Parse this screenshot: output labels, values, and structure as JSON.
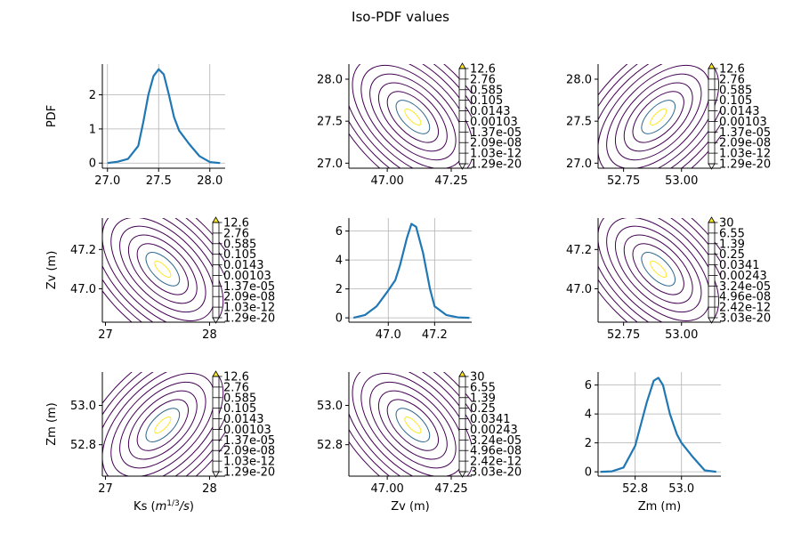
{
  "figure": {
    "title": "Iso-PDF values"
  },
  "contour_palette": [
    "#440154",
    "#31688e",
    "#5ec962",
    "#fde725"
  ],
  "line_color": "#1f77b4",
  "colorbars": {
    "a": [
      "12.6",
      "2.76",
      "0.585",
      "0.105",
      "0.0143",
      "0.00103",
      "1.37e-05",
      "2.09e-08",
      "1.03e-12",
      "1.29e-20"
    ],
    "b": [
      "30",
      "6.55",
      "1.39",
      "0.25",
      "0.0341",
      "0.00243",
      "3.24e-05",
      "4.96e-08",
      "2.42e-12",
      "3.03e-20"
    ]
  },
  "chart_data": [
    {
      "type": "line",
      "id": "p00",
      "ylabel": "PDF",
      "xlabel": "",
      "grid": true,
      "xlim": [
        26.95,
        28.15
      ],
      "ylim": [
        -0.15,
        2.9
      ],
      "xticks": [
        {
          "v": 27,
          "t": "27.0"
        },
        {
          "v": 27.5,
          "t": "27.5"
        },
        {
          "v": 28,
          "t": "28.0"
        }
      ],
      "yticks": [
        {
          "v": 0,
          "t": "0"
        },
        {
          "v": 1,
          "t": "1"
        },
        {
          "v": 2,
          "t": "2"
        }
      ],
      "x": [
        27.0,
        27.1,
        27.2,
        27.3,
        27.35,
        27.4,
        27.45,
        27.5,
        27.55,
        27.6,
        27.65,
        27.7,
        27.8,
        27.9,
        28.0,
        28.1
      ],
      "y": [
        0.0,
        0.04,
        0.12,
        0.5,
        1.2,
        2.0,
        2.55,
        2.75,
        2.6,
        2.0,
        1.35,
        0.95,
        0.55,
        0.2,
        0.03,
        0.0
      ]
    },
    {
      "type": "contour",
      "id": "p01",
      "xlabel": "",
      "ylabel": "",
      "colorbar": "a",
      "xlim": [
        46.85,
        47.33
      ],
      "ylim": [
        26.94,
        28.18
      ],
      "center": [
        47.1,
        27.55
      ],
      "orient": "neg",
      "xticks": [
        {
          "v": 47,
          "t": "47.00"
        },
        {
          "v": 47.25,
          "t": "47.25"
        }
      ],
      "yticks": [
        {
          "v": 27,
          "t": "27.0"
        },
        {
          "v": 27.5,
          "t": "27.5"
        },
        {
          "v": 28,
          "t": "28.0"
        }
      ]
    },
    {
      "type": "contour",
      "id": "p02",
      "xlabel": "",
      "ylabel": "",
      "colorbar": "a",
      "xlim": [
        52.64,
        53.17
      ],
      "ylim": [
        26.94,
        28.18
      ],
      "center": [
        52.9,
        27.55
      ],
      "orient": "pos",
      "xticks": [
        {
          "v": 52.75,
          "t": "52.75"
        },
        {
          "v": 53,
          "t": "53.00"
        }
      ],
      "yticks": [
        {
          "v": 27,
          "t": "27.0"
        },
        {
          "v": 27.5,
          "t": "27.5"
        },
        {
          "v": 28,
          "t": "28.0"
        }
      ]
    },
    {
      "type": "contour",
      "id": "p10",
      "xlabel": "",
      "ylabel": "Zv (m)",
      "colorbar": "a",
      "xlim": [
        26.97,
        28.15
      ],
      "ylim": [
        46.83,
        47.36
      ],
      "center": [
        27.55,
        47.1
      ],
      "orient": "neg",
      "xticks": [
        {
          "v": 27,
          "t": "27"
        },
        {
          "v": 28,
          "t": "28"
        }
      ],
      "yticks": [
        {
          "v": 47,
          "t": "47.0"
        },
        {
          "v": 47.2,
          "t": "47.2"
        }
      ]
    },
    {
      "type": "line",
      "id": "p11",
      "xlabel": "",
      "ylabel": "",
      "grid": true,
      "xlim": [
        46.83,
        47.36
      ],
      "ylim": [
        -0.3,
        6.9
      ],
      "xticks": [
        {
          "v": 47,
          "t": "47.0"
        },
        {
          "v": 47.2,
          "t": "47.2"
        }
      ],
      "yticks": [
        {
          "v": 0,
          "t": "0"
        },
        {
          "v": 2,
          "t": "2"
        },
        {
          "v": 4,
          "t": "4"
        },
        {
          "v": 6,
          "t": "6"
        }
      ],
      "x": [
        46.85,
        46.9,
        46.95,
        47.0,
        47.03,
        47.05,
        47.08,
        47.1,
        47.12,
        47.15,
        47.18,
        47.2,
        47.25,
        47.3,
        47.35
      ],
      "y": [
        0.0,
        0.2,
        0.8,
        1.9,
        2.6,
        3.6,
        5.5,
        6.5,
        6.3,
        4.5,
        2.0,
        0.8,
        0.2,
        0.03,
        0.0
      ]
    },
    {
      "type": "contour",
      "id": "p12",
      "xlabel": "",
      "ylabel": "",
      "colorbar": "b",
      "xlim": [
        52.64,
        53.17
      ],
      "ylim": [
        46.83,
        47.36
      ],
      "center": [
        52.9,
        47.1
      ],
      "orient": "neg",
      "xticks": [
        {
          "v": 52.75,
          "t": "52.75"
        },
        {
          "v": 53,
          "t": "53.00"
        }
      ],
      "yticks": [
        {
          "v": 47,
          "t": "47.0"
        },
        {
          "v": 47.2,
          "t": "47.2"
        }
      ]
    },
    {
      "type": "contour",
      "id": "p20",
      "xlabel": "Ks (m^{1/3}/s)",
      "ylabel": "Zm (m)",
      "colorbar": "a",
      "xlim": [
        26.97,
        28.15
      ],
      "ylim": [
        52.64,
        53.17
      ],
      "center": [
        27.55,
        52.9
      ],
      "orient": "pos",
      "xticks": [
        {
          "v": 27,
          "t": "27"
        },
        {
          "v": 28,
          "t": "28"
        }
      ],
      "yticks": [
        {
          "v": 52.8,
          "t": "52.8"
        },
        {
          "v": 53,
          "t": "53.0"
        }
      ]
    },
    {
      "type": "contour",
      "id": "p21",
      "xlabel": "Zv (m)",
      "ylabel": "",
      "colorbar": "b",
      "xlim": [
        46.85,
        47.33
      ],
      "ylim": [
        52.64,
        53.17
      ],
      "center": [
        47.1,
        52.9
      ],
      "orient": "neg",
      "xticks": [
        {
          "v": 47,
          "t": "47.00"
        },
        {
          "v": 47.25,
          "t": "47.25"
        }
      ],
      "yticks": [
        {
          "v": 52.8,
          "t": "52.8"
        },
        {
          "v": 53,
          "t": "53.0"
        }
      ]
    },
    {
      "type": "line",
      "id": "p22",
      "xlabel": "Zm (m)",
      "ylabel": "",
      "grid": true,
      "xlim": [
        52.64,
        53.17
      ],
      "ylim": [
        -0.3,
        6.9
      ],
      "xticks": [
        {
          "v": 52.8,
          "t": "52.8"
        },
        {
          "v": 53,
          "t": "53.0"
        }
      ],
      "yticks": [
        {
          "v": 0,
          "t": "0"
        },
        {
          "v": 2,
          "t": "2"
        },
        {
          "v": 4,
          "t": "4"
        },
        {
          "v": 6,
          "t": "6"
        }
      ],
      "x": [
        52.65,
        52.7,
        52.75,
        52.8,
        52.85,
        52.88,
        52.9,
        52.92,
        52.95,
        52.98,
        53.0,
        53.05,
        53.1,
        53.15
      ],
      "y": [
        0.0,
        0.03,
        0.3,
        1.8,
        4.8,
        6.3,
        6.5,
        6.0,
        4.0,
        2.6,
        2.0,
        1.0,
        0.1,
        0.0
      ]
    }
  ]
}
